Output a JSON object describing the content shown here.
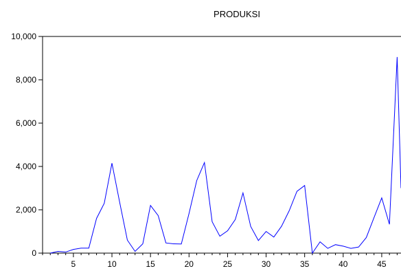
{
  "chart_data": {
    "type": "line",
    "title": "PRODUKSI",
    "xlabel": "",
    "ylabel": "",
    "xlim": [
      1,
      47.5
    ],
    "ylim": [
      0,
      10000
    ],
    "grid": false,
    "legend": "none",
    "x_ticks": [
      5,
      10,
      15,
      20,
      25,
      30,
      35,
      40,
      45
    ],
    "y_ticks": [
      0,
      2000,
      4000,
      6000,
      8000,
      10000
    ],
    "y_tick_labels": [
      "0",
      "2,000",
      "4,000",
      "6,000",
      "8,000",
      "10,000"
    ],
    "series": [
      {
        "color": "#0000ff",
        "x": [
          2,
          3,
          4,
          5,
          6,
          7,
          8,
          9,
          10,
          11,
          12,
          13,
          14,
          15,
          16,
          17,
          18,
          19,
          20,
          21,
          22,
          23,
          24,
          25,
          26,
          27,
          28,
          29,
          30,
          31,
          32,
          33,
          34,
          35,
          36,
          37,
          38,
          39,
          40,
          41,
          42,
          43,
          44,
          45,
          46,
          47,
          48
        ],
        "values": [
          0,
          80,
          50,
          170,
          230,
          230,
          1600,
          2300,
          4150,
          2350,
          600,
          80,
          430,
          2200,
          1730,
          470,
          430,
          420,
          1830,
          3350,
          4180,
          1450,
          780,
          1030,
          1550,
          2780,
          1230,
          580,
          1000,
          740,
          1240,
          1960,
          2850,
          3120,
          0,
          520,
          220,
          390,
          320,
          220,
          280,
          720,
          1640,
          2550,
          1330,
          9050,
          3000
        ]
      }
    ]
  }
}
